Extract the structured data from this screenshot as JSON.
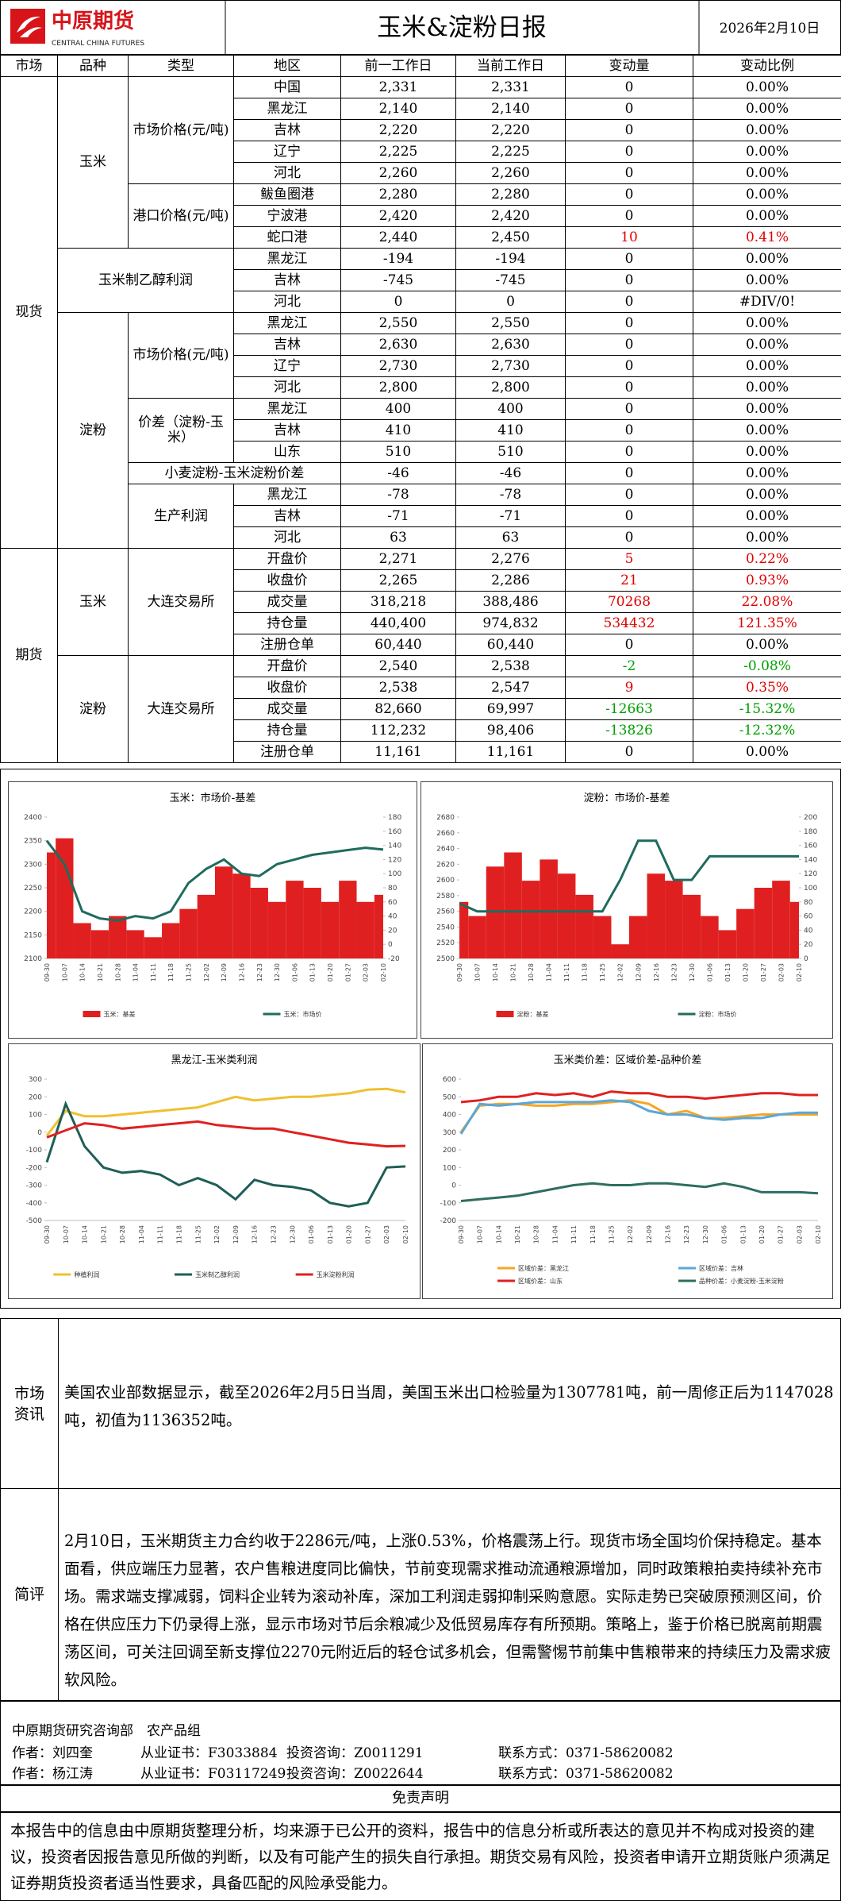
{
  "header": {
    "logo_cn": "中原期货",
    "logo_en": "CENTRAL CHINA FUTURES",
    "title": "玉米&淀粉日报",
    "date": "2026年2月10日"
  },
  "table": {
    "columns": [
      "市场",
      "品种",
      "类型",
      "地区",
      "前一工作日",
      "当前工作日",
      "变动量",
      "变动比例"
    ],
    "sections": [
      {
        "market": "现货",
        "varieties": [
          {
            "variety": "玉米",
            "types": [
              {
                "type": "市场价格(元/吨)",
                "rows": [
                  [
                    "中国",
                    "2,331",
                    "2,331",
                    "0",
                    "0.00%"
                  ],
                  [
                    "黑龙江",
                    "2,140",
                    "2,140",
                    "0",
                    "0.00%"
                  ],
                  [
                    "吉林",
                    "2,220",
                    "2,220",
                    "0",
                    "0.00%"
                  ],
                  [
                    "辽宁",
                    "2,225",
                    "2,225",
                    "0",
                    "0.00%"
                  ],
                  [
                    "河北",
                    "2,260",
                    "2,260",
                    "0",
                    "0.00%"
                  ]
                ]
              },
              {
                "type": "港口价格(元/吨)",
                "rows": [
                  [
                    "鲅鱼圈港",
                    "2,280",
                    "2,280",
                    "0",
                    "0.00%"
                  ],
                  [
                    "宁波港",
                    "2,420",
                    "2,420",
                    "0",
                    "0.00%"
                  ],
                  [
                    "蛇口港",
                    "2,440",
                    "2,450",
                    "10",
                    "0.41%"
                  ]
                ]
              }
            ]
          },
          {
            "variety": "玉米制乙醇利润",
            "types": [
              {
                "type": null,
                "rows": [
                  [
                    "黑龙江",
                    "-194",
                    "-194",
                    "0",
                    "0.00%"
                  ],
                  [
                    "吉林",
                    "-745",
                    "-745",
                    "0",
                    "0.00%"
                  ],
                  [
                    "河北",
                    "0",
                    "0",
                    "0",
                    "#DIV/0!"
                  ]
                ]
              }
            ]
          },
          {
            "variety": "淀粉",
            "types": [
              {
                "type": "市场价格(元/吨)",
                "rows": [
                  [
                    "黑龙江",
                    "2,550",
                    "2,550",
                    "0",
                    "0.00%"
                  ],
                  [
                    "吉林",
                    "2,630",
                    "2,630",
                    "0",
                    "0.00%"
                  ],
                  [
                    "辽宁",
                    "2,730",
                    "2,730",
                    "0",
                    "0.00%"
                  ],
                  [
                    "河北",
                    "2,800",
                    "2,800",
                    "0",
                    "0.00%"
                  ]
                ]
              },
              {
                "type": "价差（淀粉-玉米）",
                "rows": [
                  [
                    "黑龙江",
                    "400",
                    "400",
                    "0",
                    "0.00%"
                  ],
                  [
                    "吉林",
                    "410",
                    "410",
                    "0",
                    "0.00%"
                  ],
                  [
                    "山东",
                    "510",
                    "510",
                    "0",
                    "0.00%"
                  ]
                ]
              },
              {
                "type": "小麦淀粉-玉米淀粉价差",
                "rows": [
                  [
                    null,
                    "-46",
                    "-46",
                    "0",
                    "0.00%"
                  ]
                ]
              },
              {
                "type": "生产利润",
                "rows": [
                  [
                    "黑龙江",
                    "-78",
                    "-78",
                    "0",
                    "0.00%"
                  ],
                  [
                    "吉林",
                    "-71",
                    "-71",
                    "0",
                    "0.00%"
                  ],
                  [
                    "河北",
                    "63",
                    "63",
                    "0",
                    "0.00%"
                  ]
                ]
              }
            ]
          }
        ]
      },
      {
        "market": "期货",
        "varieties": [
          {
            "variety": "玉米",
            "types": [
              {
                "type": "大连交易所",
                "rows": [
                  [
                    "开盘价",
                    "2,271",
                    "2,276",
                    "5",
                    "0.22%"
                  ],
                  [
                    "收盘价",
                    "2,265",
                    "2,286",
                    "21",
                    "0.93%"
                  ],
                  [
                    "成交量",
                    "318,218",
                    "388,486",
                    "70268",
                    "22.08%"
                  ],
                  [
                    "持仓量",
                    "440,400",
                    "974,832",
                    "534432",
                    "121.35%"
                  ],
                  [
                    "注册仓单",
                    "60,440",
                    "60,440",
                    "0",
                    "0.00%"
                  ]
                ]
              }
            ]
          },
          {
            "variety": "淀粉",
            "types": [
              {
                "type": "大连交易所",
                "rows": [
                  [
                    "开盘价",
                    "2,540",
                    "2,538",
                    "-2",
                    "-0.08%"
                  ],
                  [
                    "收盘价",
                    "2,538",
                    "2,547",
                    "9",
                    "0.35%"
                  ],
                  [
                    "成交量",
                    "82,660",
                    "69,997",
                    "-12663",
                    "-15.32%"
                  ],
                  [
                    "持仓量",
                    "112,232",
                    "98,406",
                    "-13826",
                    "-12.32%"
                  ],
                  [
                    "注册仓单",
                    "11,161",
                    "11,161",
                    "0",
                    "0.00%"
                  ]
                ]
              }
            ]
          }
        ]
      }
    ]
  },
  "chart_data": [
    {
      "type": "line",
      "title": "玉米：市场价-基差",
      "legend": "bottom",
      "categories": [
        "09-30",
        "10-07",
        "10-14",
        "10-21",
        "10-28",
        "11-04",
        "11-11",
        "11-18",
        "11-25",
        "12-02",
        "12-09",
        "12-16",
        "12-23",
        "12-30",
        "01-06",
        "01-13",
        "01-20",
        "01-27",
        "02-03",
        "02-10"
      ],
      "ylim": [
        2100,
        2400
      ],
      "yticks": [
        2100,
        2150,
        2200,
        2250,
        2300,
        2350,
        2400
      ],
      "y2lim": [
        -20,
        180
      ],
      "y2ticks": [
        -20,
        0,
        20,
        40,
        60,
        80,
        100,
        120,
        140,
        160,
        180
      ],
      "series": [
        {
          "name": "玉米：基差",
          "type": "area",
          "axis": "y2",
          "color": "#e02020",
          "values": [
            130,
            150,
            30,
            20,
            40,
            20,
            10,
            30,
            50,
            70,
            110,
            100,
            80,
            60,
            90,
            80,
            60,
            90,
            60,
            70
          ]
        },
        {
          "name": "玉米：市场价",
          "color": "#1f6b5e",
          "values": [
            2350,
            2300,
            2200,
            2185,
            2180,
            2190,
            2185,
            2200,
            2260,
            2290,
            2310,
            2280,
            2275,
            2300,
            2310,
            2320,
            2325,
            2330,
            2335,
            2331
          ]
        }
      ]
    },
    {
      "type": "line",
      "title": "淀粉：市场价-基差",
      "legend": "bottom",
      "categories": [
        "09-30",
        "10-07",
        "10-14",
        "10-21",
        "10-28",
        "11-04",
        "11-11",
        "11-18",
        "11-25",
        "12-02",
        "12-09",
        "12-16",
        "12-23",
        "12-30",
        "01-06",
        "01-13",
        "01-20",
        "01-27",
        "02-03",
        "02-10"
      ],
      "ylim": [
        2500,
        2680
      ],
      "yticks": [
        2500,
        2520,
        2540,
        2560,
        2580,
        2600,
        2620,
        2640,
        2660,
        2680
      ],
      "y2lim": [
        0,
        200
      ],
      "y2ticks": [
        0,
        20,
        40,
        60,
        80,
        100,
        120,
        140,
        160,
        180,
        200
      ],
      "series": [
        {
          "name": "淀粉：基差",
          "type": "area",
          "axis": "y2",
          "color": "#e02020",
          "values": [
            80,
            60,
            130,
            150,
            110,
            140,
            120,
            90,
            60,
            20,
            60,
            120,
            110,
            90,
            60,
            40,
            70,
            100,
            110,
            80
          ]
        },
        {
          "name": "淀粉：市场价",
          "color": "#1f6b5e",
          "values": [
            2570,
            2560,
            2560,
            2560,
            2560,
            2560,
            2560,
            2560,
            2560,
            2600,
            2650,
            2650,
            2600,
            2600,
            2630,
            2630,
            2630,
            2630,
            2630,
            2630
          ]
        }
      ]
    },
    {
      "type": "line",
      "title": "黑龙江-玉米类利润",
      "legend": "bottom",
      "categories": [
        "09-30",
        "10-07",
        "10-14",
        "10-21",
        "10-28",
        "11-04",
        "11-11",
        "11-18",
        "11-25",
        "12-02",
        "12-09",
        "12-16",
        "12-23",
        "12-30",
        "01-06",
        "01-13",
        "01-20",
        "01-27",
        "02-03",
        "02-10"
      ],
      "ylim": [
        -500,
        300
      ],
      "yticks": [
        -500,
        -400,
        -300,
        -200,
        -100,
        0,
        100,
        200,
        300
      ],
      "series": [
        {
          "name": "种植利润",
          "color": "#f0c030",
          "values": [
            -20,
            120,
            90,
            90,
            100,
            110,
            120,
            130,
            140,
            170,
            200,
            180,
            190,
            200,
            200,
            210,
            220,
            240,
            245,
            225
          ]
        },
        {
          "name": "玉米制乙醇利润",
          "color": "#1e5e56",
          "values": [
            -170,
            160,
            -80,
            -200,
            -230,
            -220,
            -240,
            -300,
            -260,
            -300,
            -380,
            -270,
            -300,
            -310,
            -330,
            -400,
            -420,
            -400,
            -200,
            -194
          ]
        },
        {
          "name": "玉米淀粉利润",
          "color": "#e02020",
          "values": [
            -30,
            10,
            50,
            40,
            20,
            30,
            40,
            50,
            60,
            40,
            30,
            20,
            20,
            0,
            -20,
            -40,
            -60,
            -70,
            -80,
            -78
          ]
        }
      ]
    },
    {
      "type": "line",
      "title": "玉米类价差：区域价差-品种价差",
      "legend": "bottom",
      "categories": [
        "09-30",
        "10-07",
        "10-14",
        "10-21",
        "10-28",
        "11-04",
        "11-11",
        "11-18",
        "11-25",
        "12-02",
        "12-09",
        "12-16",
        "12-23",
        "12-30",
        "01-06",
        "01-13",
        "01-20",
        "01-27",
        "02-03",
        "02-10"
      ],
      "ylim": [
        -200,
        600
      ],
      "yticks": [
        -200,
        -100,
        0,
        100,
        200,
        300,
        400,
        500,
        600
      ],
      "series": [
        {
          "name": "区域价差：黑龙江",
          "color": "#f5a623",
          "values": [
            300,
            450,
            460,
            460,
            450,
            450,
            460,
            460,
            470,
            480,
            460,
            400,
            420,
            380,
            380,
            390,
            400,
            400,
            400,
            400
          ]
        },
        {
          "name": "区域价差：吉林",
          "color": "#5ba7d8",
          "values": [
            290,
            460,
            450,
            460,
            470,
            470,
            470,
            470,
            480,
            470,
            420,
            400,
            400,
            380,
            370,
            380,
            380,
            400,
            410,
            410
          ]
        },
        {
          "name": "区域价差：山东",
          "color": "#e02020",
          "values": [
            470,
            480,
            500,
            500,
            520,
            510,
            520,
            500,
            530,
            520,
            520,
            500,
            500,
            490,
            500,
            510,
            520,
            520,
            510,
            510
          ]
        },
        {
          "name": "品种价差：小麦淀粉-玉米淀粉",
          "color": "#2e6e60",
          "values": [
            -90,
            -80,
            -70,
            -60,
            -40,
            -20,
            0,
            10,
            0,
            0,
            10,
            10,
            0,
            -10,
            10,
            -10,
            -40,
            -40,
            -40,
            -46
          ]
        }
      ]
    }
  ],
  "info": {
    "label": "市场资讯",
    "text": "美国农业部数据显示，截至2026年2月5日当周，美国玉米出口检验量为1307781吨，前一周修正后为1147028吨，初值为1136352吨。"
  },
  "comment": {
    "label": "简评",
    "text": "2月10日，玉米期货主力合约收于2286元/吨，上涨0.53%，价格震荡上行。现货市场全国均价保持稳定。基本面看，供应端压力显著，农户售粮进度同比偏快，节前变现需求推动流通粮源增加，同时政策粮拍卖持续补充市场。需求端支撑减弱，饲料企业转为滚动补库，深加工利润走弱抑制采购意愿。实际走势已突破原预测区间，价格在供应压力下仍录得上涨，显示市场对节后余粮减少及低贸易库存有所预期。策略上，鉴于价格已脱离前期震荡区间，可关注回调至新支撑位2270元附近后的轻仓试多机会，但需警惕节前集中售粮带来的持续压力及需求疲软风险。"
  },
  "footer": {
    "dept": "中原期货研究咨询部　农产品组",
    "authors": [
      [
        "作者：刘四奎",
        "从业证书：F3033884",
        "投资咨询：Z0011291",
        "联系方式：0371-58620082"
      ],
      [
        "作者：杨江涛",
        "从业证书：F03117249",
        "投资咨询：Z0022644",
        "联系方式：0371-58620082"
      ]
    ],
    "disclaimer_title": "免责声明",
    "disclaimer": "本报告中的信息由中原期货整理分析，均来源于已公开的资料，报告中的信息分析或所表达的意见并不构成对投资的建议，投资者因报告意见所做的判断，以及有可能产生的损失自行承担。期货交易有风险，投资者申请开立期货账户须满足证券期货投资者适当性要求，具备匹配的风险承受能力。"
  }
}
